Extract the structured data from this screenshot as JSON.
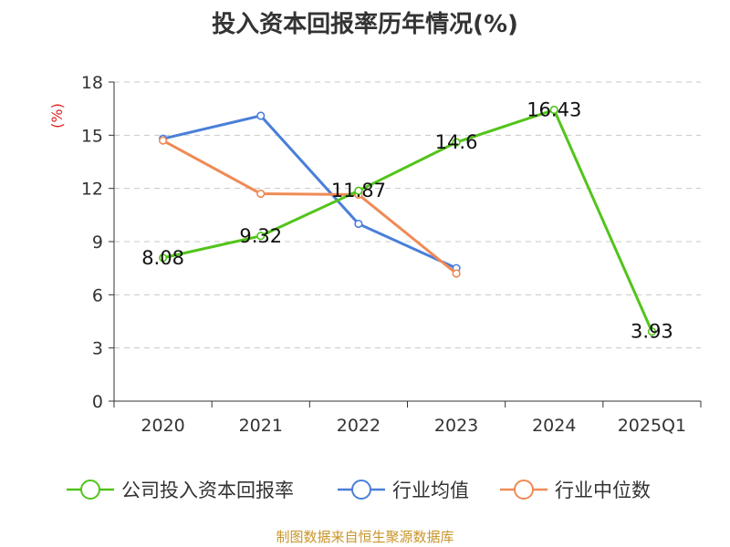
{
  "title": "投入资本回报率历年情况(%)",
  "footer": "制图数据来自恒生聚源数据库",
  "chart_data": {
    "type": "line",
    "title": "投入资本回报率历年情况(%)",
    "ylabel": "(%)",
    "xlabel": "",
    "categories": [
      "2020",
      "2021",
      "2022",
      "2023",
      "2024",
      "2025Q1"
    ],
    "ylim": [
      0,
      18
    ],
    "yticks": [
      0,
      3,
      6,
      9,
      12,
      15,
      18
    ],
    "grid": true,
    "legend_position": "bottom",
    "series": [
      {
        "name": "公司投入资本回报率",
        "color": "#52c41a",
        "values": [
          8.08,
          9.32,
          11.87,
          14.6,
          16.43,
          3.93
        ],
        "labels": [
          "8.08",
          "9.32",
          "11.87",
          "14.6",
          "16.43",
          "3.93"
        ]
      },
      {
        "name": "行业均值",
        "color": "#4a7fd9",
        "values": [
          14.8,
          16.1,
          10.0,
          7.5,
          null,
          null
        ]
      },
      {
        "name": "行业中位数",
        "color": "#f08a55",
        "values": [
          14.7,
          11.7,
          11.65,
          7.2,
          null,
          null
        ]
      }
    ]
  }
}
